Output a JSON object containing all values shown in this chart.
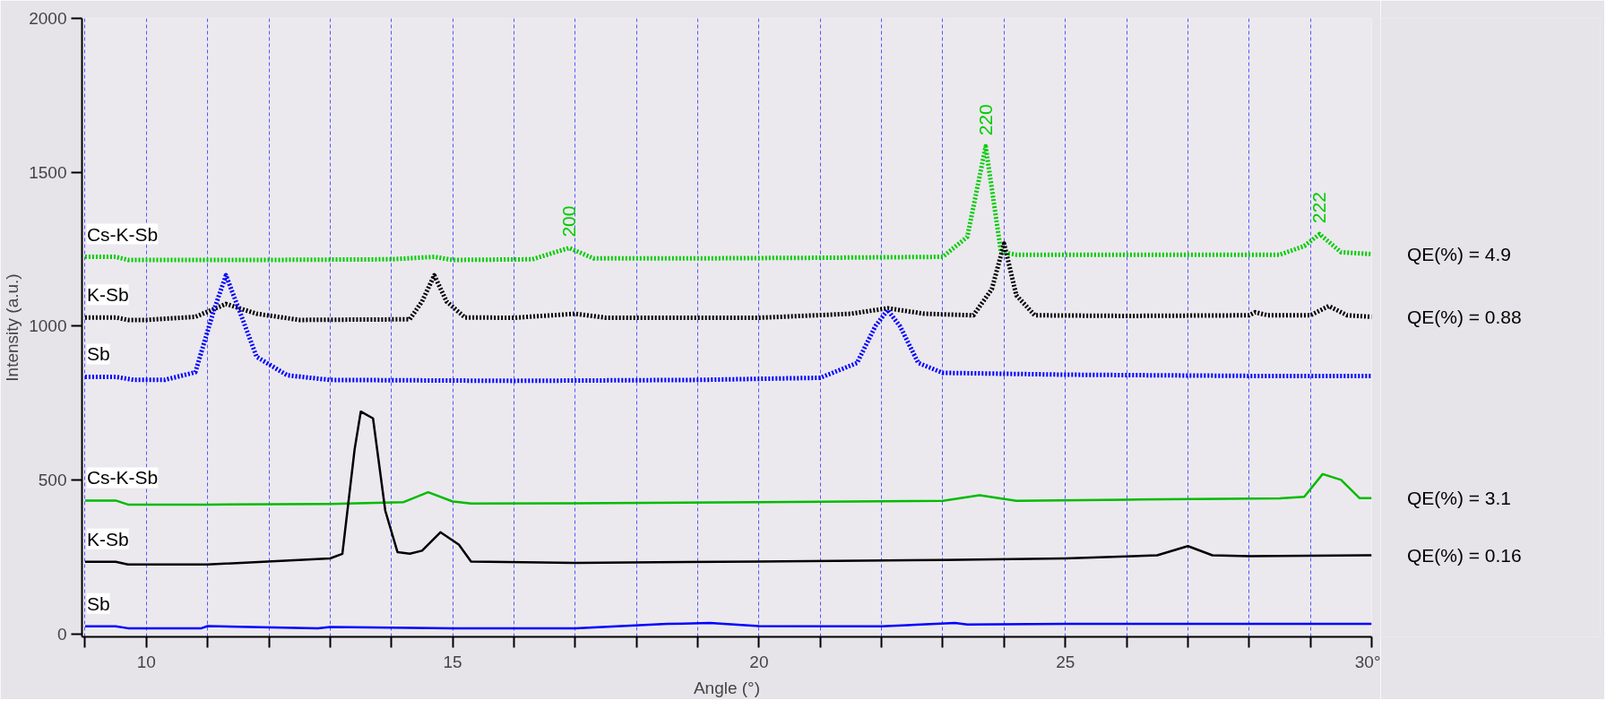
{
  "chart_data": {
    "type": "line",
    "xlabel": "Angle (°)",
    "ylabel": "Intensity (a.u.)",
    "xlim": [
      8.95,
      30
    ],
    "ylim": [
      -10,
      2000
    ],
    "xticks": [
      {
        "value": 9,
        "label": null
      },
      {
        "value": 10,
        "label": "10"
      },
      {
        "value": 11,
        "label": null
      },
      {
        "value": 12,
        "label": null
      },
      {
        "value": 13,
        "label": null
      },
      {
        "value": 14,
        "label": null
      },
      {
        "value": 15,
        "label": "15"
      },
      {
        "value": 16,
        "label": null
      },
      {
        "value": 17,
        "label": null
      },
      {
        "value": 18,
        "label": null
      },
      {
        "value": 19,
        "label": null
      },
      {
        "value": 20,
        "label": "20"
      },
      {
        "value": 21,
        "label": null
      },
      {
        "value": 22,
        "label": null
      },
      {
        "value": 23,
        "label": null
      },
      {
        "value": 24,
        "label": null
      },
      {
        "value": 25,
        "label": "25"
      },
      {
        "value": 26,
        "label": null
      },
      {
        "value": 27,
        "label": null
      },
      {
        "value": 28,
        "label": null
      },
      {
        "value": 29,
        "label": null
      },
      {
        "value": 30,
        "label": "30°"
      }
    ],
    "yticks": [
      0,
      500,
      1000,
      1500,
      2000
    ],
    "grid": "x",
    "series": [
      {
        "name": "Cs-K-Sb",
        "color": "#00cc00",
        "line_style": "dotted",
        "x": [
          9,
          9.5,
          9.7,
          10,
          12,
          14,
          14.7,
          15,
          16.3,
          16.9,
          17.3,
          19,
          21,
          23,
          23.4,
          23.7,
          23.95,
          24.2,
          26,
          28.5,
          28.9,
          29.15,
          29.5,
          30
        ],
        "values": [
          1225,
          1225,
          1215,
          1215,
          1215,
          1217,
          1225,
          1215,
          1217,
          1254,
          1220,
          1220,
          1222,
          1225,
          1290,
          1584,
          1240,
          1232,
          1232,
          1232,
          1260,
          1299,
          1240,
          1234
        ]
      },
      {
        "name": "K-Sb",
        "color": "#000000",
        "line_style": "dotted",
        "x": [
          9,
          9.5,
          9.7,
          10,
          10.8,
          11.3,
          11.8,
          12.5,
          14.3,
          14.5,
          14.7,
          14.9,
          15.2,
          16,
          17,
          17.5,
          20,
          21.5,
          22.1,
          22.7,
          23.5,
          23.8,
          24,
          24.2,
          24.5,
          26,
          28,
          28.1,
          28.3,
          29,
          29.3,
          29.6,
          30
        ],
        "values": [
          1028,
          1028,
          1020,
          1020,
          1030,
          1072,
          1040,
          1020,
          1022,
          1080,
          1165,
          1080,
          1028,
          1027,
          1040,
          1027,
          1027,
          1040,
          1058,
          1040,
          1035,
          1120,
          1268,
          1100,
          1035,
          1033,
          1035,
          1045,
          1035,
          1035,
          1065,
          1035,
          1030
        ]
      },
      {
        "name": "Sb",
        "color": "#0000ff",
        "line_style": "dotted",
        "x": [
          9,
          9.5,
          9.8,
          10.3,
          10.8,
          11.1,
          11.3,
          11.5,
          11.8,
          12.3,
          13,
          16,
          19,
          21,
          21.6,
          21.9,
          22.1,
          22.3,
          22.6,
          23,
          25,
          28,
          30
        ],
        "values": [
          835,
          835,
          825,
          825,
          850,
          1050,
          1165,
          1060,
          900,
          840,
          825,
          822,
          825,
          832,
          880,
          1000,
          1052,
          1000,
          880,
          848,
          842,
          838,
          838
        ]
      },
      {
        "name": "Cs-K-Sb",
        "color": "#00bb00",
        "line_style": "solid",
        "x": [
          9,
          9.5,
          9.7,
          11,
          13,
          14.2,
          14.6,
          15,
          15.3,
          17,
          20,
          23,
          23.6,
          24.2,
          26,
          28.5,
          28.9,
          29.2,
          29.5,
          29.8,
          30
        ],
        "values": [
          433,
          433,
          420,
          420,
          422,
          428,
          460,
          430,
          423,
          424,
          428,
          432,
          450,
          432,
          436,
          440,
          445,
          519,
          500,
          441,
          441
        ]
      },
      {
        "name": "K-Sb",
        "color": "#000000",
        "line_style": "solid",
        "x": [
          9,
          9.5,
          9.7,
          11,
          13,
          13.2,
          13.4,
          13.5,
          13.7,
          13.9,
          14.1,
          14.3,
          14.5,
          14.8,
          15.1,
          15.3,
          17,
          20,
          23,
          25,
          26.5,
          27,
          27.4,
          28,
          30
        ],
        "values": [
          234,
          234,
          225,
          225,
          245,
          260,
          600,
          722,
          700,
          400,
          265,
          260,
          270,
          330,
          290,
          235,
          230,
          235,
          240,
          245,
          255,
          285,
          255,
          252,
          255
        ]
      },
      {
        "name": "Sb",
        "color": "#0000ff",
        "line_style": "solid",
        "x": [
          9,
          9.5,
          9.7,
          10.9,
          11,
          12.8,
          13,
          15,
          17,
          18.5,
          19.2,
          20,
          22,
          23.2,
          23.4,
          25,
          30
        ],
        "values": [
          24,
          24,
          18,
          18,
          25,
          18,
          22,
          18,
          18,
          32,
          35,
          25,
          24,
          35,
          30,
          32,
          32
        ]
      }
    ],
    "annotations": [
      {
        "text": "200",
        "x": 16.9,
        "y": 1254
      },
      {
        "text": "220",
        "x": 23.7,
        "y": 1584
      },
      {
        "text": "222",
        "x": 29.15,
        "y": 1299
      },
      {
        "text": "QE(%) = 4.9",
        "x": 30,
        "y": 1234
      },
      {
        "text": "QE(%) = 0.88",
        "x": 30,
        "y": 1030
      },
      {
        "text": "QE(%) = 3.1",
        "x": 30,
        "y": 441
      },
      {
        "text": "QE(%) = 0.16",
        "x": 30,
        "y": 255
      }
    ]
  }
}
